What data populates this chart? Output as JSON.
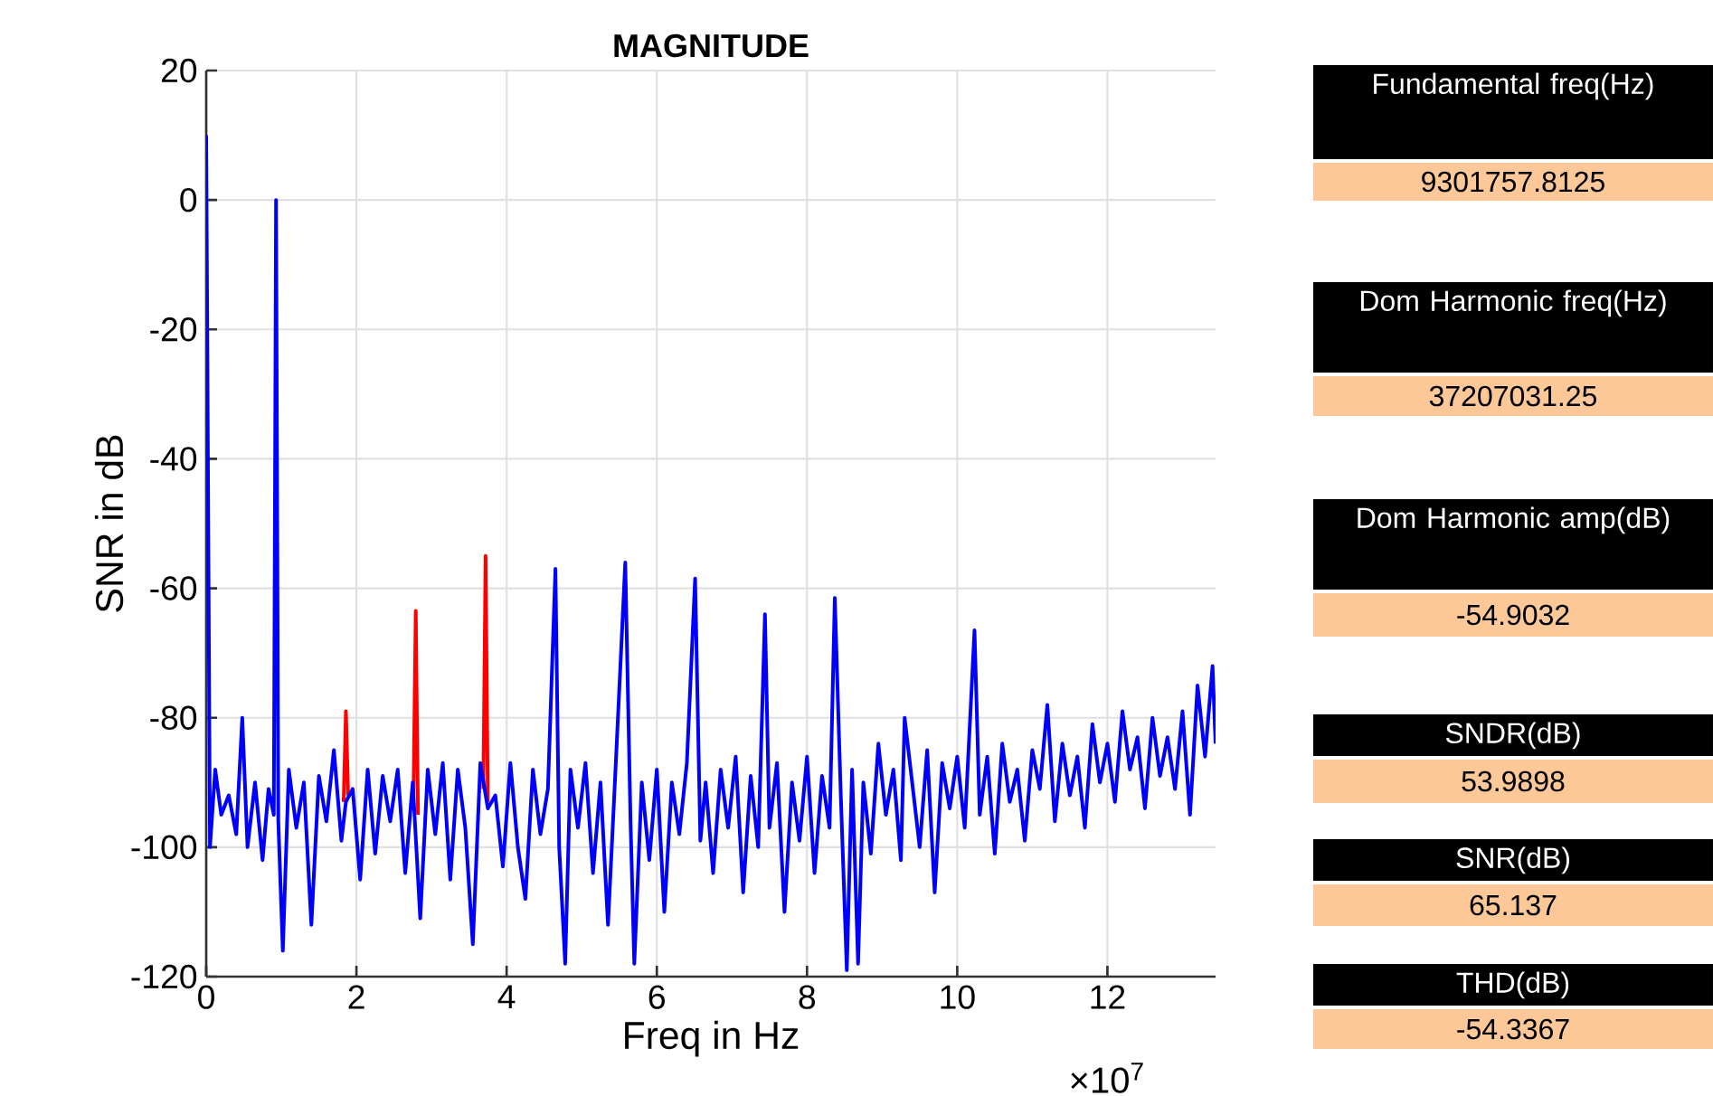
{
  "chart_data": {
    "type": "line",
    "title": "MAGNITUDE",
    "xlabel": "Freq in Hz",
    "ylabel": "SNR in dB",
    "xlim": [
      0,
      13.44
    ],
    "ylim": [
      -120,
      20
    ],
    "xticks": [
      0,
      2,
      4,
      6,
      8,
      10,
      12
    ],
    "yticks": [
      -120,
      -100,
      -80,
      -60,
      -40,
      -20,
      0,
      20
    ],
    "grid": true,
    "line_style": "solid",
    "marker": "none",
    "series": [
      {
        "color": "#ff0000",
        "x": [
          1.83,
          1.86,
          1.89,
          2.0,
          2.76,
          2.79,
          2.82,
          3.0,
          3.69,
          3.72,
          3.75
        ],
        "values": [
          -93,
          -79,
          -92,
          null,
          -92,
          -63.5,
          -95,
          null,
          -91,
          -55,
          -93
        ]
      },
      {
        "color": "#0000ff",
        "x": [
          0,
          0.05,
          0.12,
          0.2,
          0.3,
          0.4,
          0.48,
          0.55,
          0.65,
          0.75,
          0.83,
          0.9,
          0.93,
          0.96,
          1.02,
          1.1,
          1.2,
          1.3,
          1.4,
          1.5,
          1.6,
          1.7,
          1.8,
          1.86,
          1.95,
          2.05,
          2.15,
          2.25,
          2.35,
          2.45,
          2.55,
          2.65,
          2.75,
          2.85,
          2.95,
          3.05,
          3.15,
          3.25,
          3.35,
          3.45,
          3.55,
          3.65,
          3.75,
          3.85,
          3.95,
          4.05,
          4.15,
          4.25,
          4.35,
          4.45,
          4.55,
          4.65,
          4.7,
          4.78,
          4.85,
          4.95,
          5.05,
          5.15,
          5.25,
          5.35,
          5.45,
          5.58,
          5.65,
          5.7,
          5.8,
          5.9,
          6.0,
          6.1,
          6.2,
          6.3,
          6.4,
          6.51,
          6.58,
          6.65,
          6.75,
          6.85,
          6.95,
          7.05,
          7.15,
          7.25,
          7.35,
          7.44,
          7.5,
          7.6,
          7.7,
          7.8,
          7.9,
          8.0,
          8.1,
          8.2,
          8.3,
          8.37,
          8.45,
          8.53,
          8.6,
          8.68,
          8.75,
          8.85,
          8.95,
          9.05,
          9.15,
          9.25,
          9.3,
          9.4,
          9.5,
          9.6,
          9.7,
          9.8,
          9.9,
          10.0,
          10.1,
          10.23,
          10.3,
          10.4,
          10.5,
          10.6,
          10.7,
          10.8,
          10.9,
          11.0,
          11.1,
          11.2,
          11.3,
          11.4,
          11.5,
          11.6,
          11.7,
          11.8,
          11.9,
          12.0,
          12.1,
          12.2,
          12.3,
          12.4,
          12.5,
          12.6,
          12.7,
          12.8,
          12.9,
          13.0,
          13.1,
          13.2,
          13.3,
          13.4,
          13.44
        ],
        "values": [
          10,
          -100,
          -88,
          -95,
          -92,
          -98,
          -80,
          -100,
          -90,
          -102,
          -91,
          -95,
          0,
          -96,
          -116,
          -88,
          -97,
          -90,
          -112,
          -89,
          -96,
          -85,
          -99,
          -93,
          -91,
          -105,
          -88,
          -101,
          -89,
          -96,
          -88,
          -104,
          -90,
          -111,
          -88,
          -98,
          -87,
          -105,
          -88,
          -97,
          -115,
          -87,
          -94,
          -92,
          -103,
          -87,
          -100,
          -108,
          -88,
          -98,
          -91,
          -57,
          -100,
          -118,
          -88,
          -97,
          -87,
          -104,
          -90,
          -112,
          -88,
          -56,
          -96,
          -118,
          -90,
          -102,
          -88,
          -110,
          -90,
          -98,
          -87,
          -58.5,
          -99,
          -90,
          -104,
          -88,
          -97,
          -86,
          -107,
          -89,
          -100,
          -64,
          -97,
          -87,
          -110,
          -90,
          -99,
          -86,
          -104,
          -89,
          -97,
          -61.5,
          -92,
          -119,
          -88,
          -118,
          -90,
          -101,
          -84,
          -95,
          -88,
          -102,
          -80,
          -90,
          -100,
          -85,
          -107,
          -87,
          -94,
          -86,
          -97,
          -66.5,
          -95,
          -86,
          -101,
          -84,
          -93,
          -88,
          -99,
          -85,
          -91,
          -78,
          -96,
          -84,
          -92,
          -86,
          -97,
          -81,
          -90,
          -84,
          -93,
          -79,
          -88,
          -83,
          -94,
          -80,
          -89,
          -83,
          -91,
          -79,
          -95,
          -75,
          -86,
          -72,
          -84
        ]
      }
    ],
    "annotations": [
      "×10$^{7}$",
      "Fundamental freq(Hz)",
      "9301757.8125",
      "Dom Harmonic freq(Hz)",
      "37207031.25",
      "Dom Harmonic amp(dB)",
      "-54.9032",
      "SNDR(dB)",
      "53.9898",
      "SNR(dB)",
      "65.137",
      "THD(dB)",
      "-54.3367"
    ]
  }
}
